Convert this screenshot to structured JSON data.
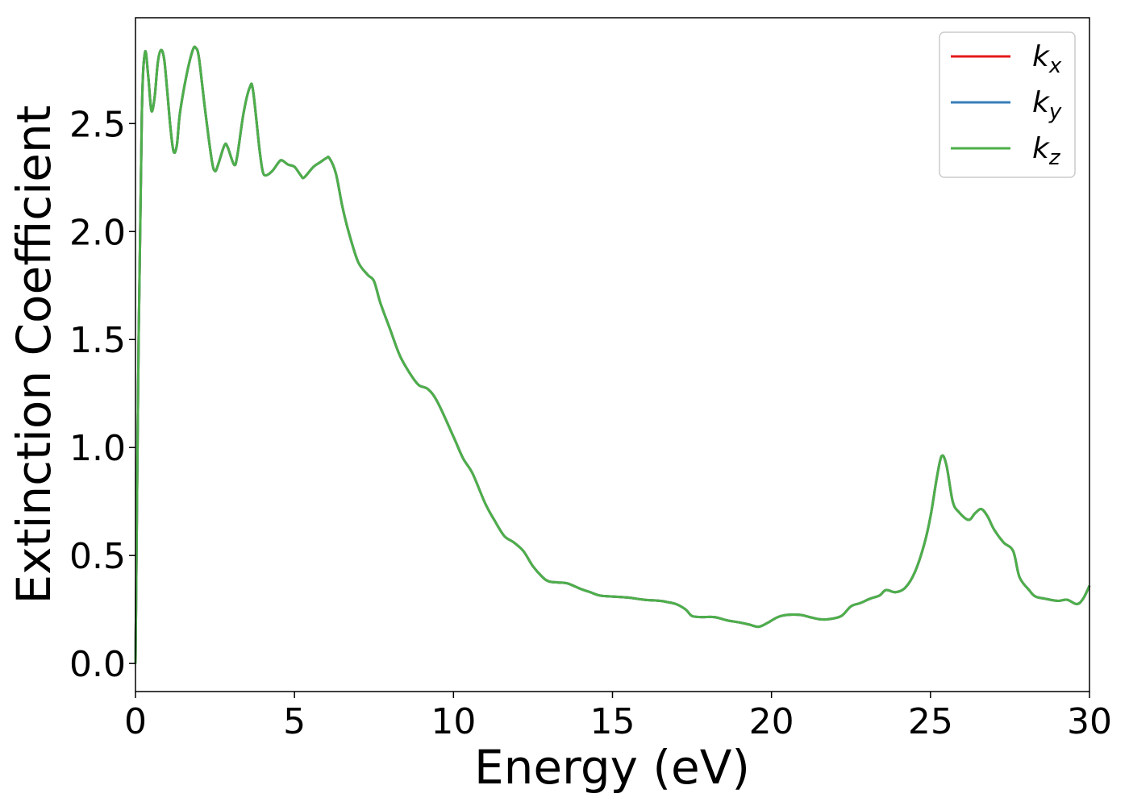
{
  "chart_data": {
    "type": "line",
    "xlabel": "Energy (eV)",
    "ylabel": "Extinction Coefficient",
    "xlim": [
      0,
      30
    ],
    "ylim": [
      -0.13,
      2.99
    ],
    "xticks": [
      0,
      5,
      10,
      15,
      20,
      25,
      30
    ],
    "yticks": [
      0.0,
      0.5,
      1.0,
      1.5,
      2.0,
      2.5
    ],
    "xtick_labels": [
      "0",
      "5",
      "10",
      "15",
      "20",
      "25",
      "30"
    ],
    "ytick_labels": [
      "0.0",
      "0.5",
      "1.0",
      "1.5",
      "2.0",
      "2.5"
    ],
    "grid": false,
    "legend_position": "top-right",
    "series": [
      {
        "name": "k",
        "subscript": "x",
        "color": "#e41a1c",
        "data_ref": "shared"
      },
      {
        "name": "k",
        "subscript": "y",
        "color": "#377eb8",
        "data_ref": "shared"
      },
      {
        "name": "k",
        "subscript": "z",
        "color": "#4daf4a",
        "data_ref": "shared"
      }
    ],
    "shared_points": [
      [
        0.0,
        0.0
      ],
      [
        0.1,
        1.5
      ],
      [
        0.2,
        2.55
      ],
      [
        0.3,
        2.83
      ],
      [
        0.4,
        2.72
      ],
      [
        0.5,
        2.56
      ],
      [
        0.6,
        2.62
      ],
      [
        0.7,
        2.78
      ],
      [
        0.8,
        2.84
      ],
      [
        0.9,
        2.8
      ],
      [
        1.0,
        2.65
      ],
      [
        1.1,
        2.48
      ],
      [
        1.2,
        2.37
      ],
      [
        1.3,
        2.4
      ],
      [
        1.4,
        2.55
      ],
      [
        1.6,
        2.72
      ],
      [
        1.8,
        2.84
      ],
      [
        1.9,
        2.85
      ],
      [
        2.0,
        2.8
      ],
      [
        2.2,
        2.55
      ],
      [
        2.4,
        2.33
      ],
      [
        2.5,
        2.28
      ],
      [
        2.6,
        2.31
      ],
      [
        2.8,
        2.4
      ],
      [
        2.9,
        2.39
      ],
      [
        3.1,
        2.31
      ],
      [
        3.2,
        2.35
      ],
      [
        3.4,
        2.55
      ],
      [
        3.6,
        2.67
      ],
      [
        3.7,
        2.65
      ],
      [
        3.9,
        2.38
      ],
      [
        4.0,
        2.28
      ],
      [
        4.1,
        2.26
      ],
      [
        4.3,
        2.28
      ],
      [
        4.5,
        2.32
      ],
      [
        4.6,
        2.33
      ],
      [
        4.8,
        2.31
      ],
      [
        5.0,
        2.3
      ],
      [
        5.2,
        2.26
      ],
      [
        5.3,
        2.25
      ],
      [
        5.6,
        2.3
      ],
      [
        5.8,
        2.32
      ],
      [
        6.0,
        2.34
      ],
      [
        6.1,
        2.34
      ],
      [
        6.3,
        2.27
      ],
      [
        6.5,
        2.12
      ],
      [
        6.7,
        2.0
      ],
      [
        7.0,
        1.86
      ],
      [
        7.3,
        1.8
      ],
      [
        7.5,
        1.77
      ],
      [
        7.7,
        1.67
      ],
      [
        8.0,
        1.55
      ],
      [
        8.3,
        1.43
      ],
      [
        8.6,
        1.35
      ],
      [
        8.9,
        1.29
      ],
      [
        9.2,
        1.27
      ],
      [
        9.5,
        1.21
      ],
      [
        10.0,
        1.05
      ],
      [
        10.3,
        0.95
      ],
      [
        10.6,
        0.88
      ],
      [
        11.0,
        0.74
      ],
      [
        11.3,
        0.66
      ],
      [
        11.6,
        0.59
      ],
      [
        11.9,
        0.56
      ],
      [
        12.2,
        0.52
      ],
      [
        12.5,
        0.45
      ],
      [
        12.8,
        0.4
      ],
      [
        13.0,
        0.38
      ],
      [
        13.3,
        0.375
      ],
      [
        13.6,
        0.37
      ],
      [
        14.0,
        0.345
      ],
      [
        14.3,
        0.33
      ],
      [
        14.6,
        0.315
      ],
      [
        15.0,
        0.31
      ],
      [
        15.5,
        0.305
      ],
      [
        16.0,
        0.295
      ],
      [
        16.5,
        0.29
      ],
      [
        16.7,
        0.285
      ],
      [
        17.0,
        0.275
      ],
      [
        17.3,
        0.25
      ],
      [
        17.5,
        0.22
      ],
      [
        17.8,
        0.215
      ],
      [
        18.2,
        0.215
      ],
      [
        18.6,
        0.2
      ],
      [
        19.0,
        0.19
      ],
      [
        19.3,
        0.18
      ],
      [
        19.6,
        0.17
      ],
      [
        19.9,
        0.19
      ],
      [
        20.2,
        0.215
      ],
      [
        20.5,
        0.225
      ],
      [
        20.9,
        0.225
      ],
      [
        21.2,
        0.215
      ],
      [
        21.5,
        0.205
      ],
      [
        21.8,
        0.205
      ],
      [
        22.2,
        0.22
      ],
      [
        22.5,
        0.265
      ],
      [
        22.8,
        0.28
      ],
      [
        23.1,
        0.3
      ],
      [
        23.4,
        0.315
      ],
      [
        23.6,
        0.34
      ],
      [
        23.9,
        0.33
      ],
      [
        24.2,
        0.35
      ],
      [
        24.5,
        0.42
      ],
      [
        24.8,
        0.55
      ],
      [
        25.0,
        0.68
      ],
      [
        25.2,
        0.86
      ],
      [
        25.35,
        0.96
      ],
      [
        25.5,
        0.92
      ],
      [
        25.7,
        0.75
      ],
      [
        25.9,
        0.7
      ],
      [
        26.2,
        0.665
      ],
      [
        26.4,
        0.695
      ],
      [
        26.6,
        0.715
      ],
      [
        26.8,
        0.68
      ],
      [
        27.0,
        0.62
      ],
      [
        27.3,
        0.56
      ],
      [
        27.6,
        0.52
      ],
      [
        27.8,
        0.4
      ],
      [
        28.1,
        0.34
      ],
      [
        28.3,
        0.31
      ],
      [
        28.6,
        0.3
      ],
      [
        29.0,
        0.29
      ],
      [
        29.3,
        0.295
      ],
      [
        29.6,
        0.275
      ],
      [
        29.8,
        0.3
      ],
      [
        30.0,
        0.36
      ]
    ]
  }
}
